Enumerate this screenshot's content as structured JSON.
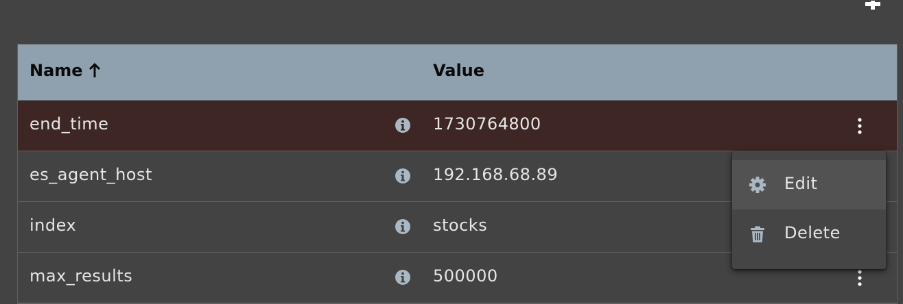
{
  "table": {
    "columns": {
      "name": "Name",
      "value": "Value"
    },
    "rows": [
      {
        "name": "end_time",
        "value": "1730764800"
      },
      {
        "name": "es_agent_host",
        "value": "192.168.68.89"
      },
      {
        "name": "index",
        "value": "stocks"
      },
      {
        "name": "max_results",
        "value": "500000"
      }
    ]
  },
  "context_menu": {
    "items": [
      {
        "label": "Edit",
        "icon": "gear-icon"
      },
      {
        "label": "Delete",
        "icon": "trash-icon"
      }
    ]
  },
  "colors": {
    "header_bg": "#8fa1ae",
    "selected_row_bg": "#3d2624",
    "page_bg": "#434343",
    "icon": "#a9b8c3"
  }
}
